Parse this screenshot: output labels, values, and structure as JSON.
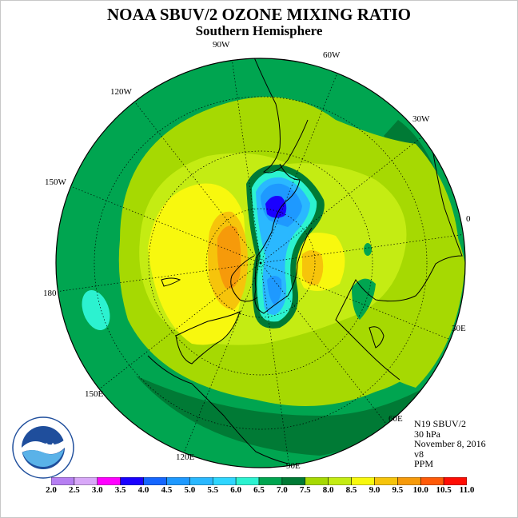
{
  "header": {
    "title": "NOAA SBUV/2 OZONE MIXING RATIO",
    "subtitle": "Southern Hemisphere"
  },
  "map": {
    "projection": "south-polar-stereographic",
    "longitude_labels": [
      "90W",
      "60W",
      "30W",
      "0",
      "30E",
      "60E",
      "90E",
      "120E",
      "150E",
      "180",
      "150W",
      "120W"
    ],
    "field_levels_ppm": {
      "outer_ring": 6.5,
      "mid_ring": 7.5,
      "broad_area": 8.0,
      "high_area": 8.5,
      "peak_area": 9.0,
      "max_patch": 9.5,
      "hole_rim": 6.0,
      "hole_inner": 5.0,
      "hole_core": 4.0
    }
  },
  "info": {
    "instrument": "N19 SBUV/2",
    "level": "30 hPa",
    "date": "November 8, 2016",
    "version": "v8",
    "units": "PPM"
  },
  "colorbar": {
    "tick_labels": [
      "2.0",
      "2.5",
      "3.0",
      "3.5",
      "4.0",
      "4.5",
      "5.0",
      "5.5",
      "6.0",
      "6.5",
      "7.0",
      "7.5",
      "8.0",
      "8.5",
      "9.0",
      "9.5",
      "10.0",
      "10.5",
      "11.0"
    ],
    "colors": [
      "#b67ff2",
      "#d8a8f8",
      "#ff00ff",
      "#1a00ff",
      "#1566ff",
      "#1e99ff",
      "#2ab8ff",
      "#2fd6ff",
      "#2cf2d0",
      "#00a550",
      "#007a35",
      "#a6d902",
      "#c4ec13",
      "#f8f80e",
      "#f6c40b",
      "#f69a0a",
      "#ff5a08",
      "#ff0d04",
      "#8b5a3a"
    ]
  },
  "logo": {
    "text": "NOAA",
    "ring_text": "NATIONAL OCEANIC AND ATMOSPHERIC ADMINISTRATION",
    "ring_text_bottom": "U.S. DEPARTMENT OF COMMERCE"
  },
  "colors": {
    "coast": "#000000",
    "grid": "#000000"
  }
}
